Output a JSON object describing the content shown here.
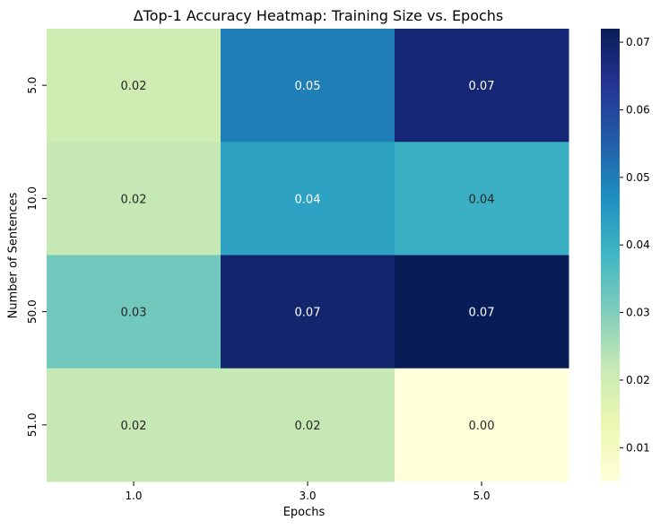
{
  "chart_data": {
    "type": "heatmap",
    "title": "ΔTop-1 Accuracy Heatmap: Training Size vs. Epochs",
    "xlabel": "Epochs",
    "ylabel": "Number of Sentences",
    "x_categories": [
      "1.0",
      "3.0",
      "5.0"
    ],
    "y_categories": [
      "5.0",
      "10.0",
      "50.0",
      "51.0"
    ],
    "values": [
      [
        0.02,
        0.05,
        0.068
      ],
      [
        0.022,
        0.043,
        0.04
      ],
      [
        0.032,
        0.069,
        0.072
      ],
      [
        0.022,
        0.022,
        0.005
      ]
    ],
    "annotations": [
      [
        "0.02",
        "0.05",
        "0.07"
      ],
      [
        "0.02",
        "0.04",
        "0.04"
      ],
      [
        "0.03",
        "0.07",
        "0.07"
      ],
      [
        "0.02",
        "0.02",
        "0.00"
      ]
    ],
    "colormap": "YlGnBu",
    "colorbar": {
      "range": [
        0.005,
        0.072
      ],
      "ticks": [
        0.01,
        0.02,
        0.03,
        0.04,
        0.05,
        0.06,
        0.07
      ],
      "tick_labels": [
        "0.01",
        "0.02",
        "0.03",
        "0.04",
        "0.05",
        "0.06",
        "0.07"
      ]
    },
    "colors": [
      "#ffffd9",
      "#edf8b1",
      "#c7e9b4",
      "#7fcdbb",
      "#41b6c4",
      "#1d91c0",
      "#225ea8",
      "#253494",
      "#081d58"
    ]
  }
}
